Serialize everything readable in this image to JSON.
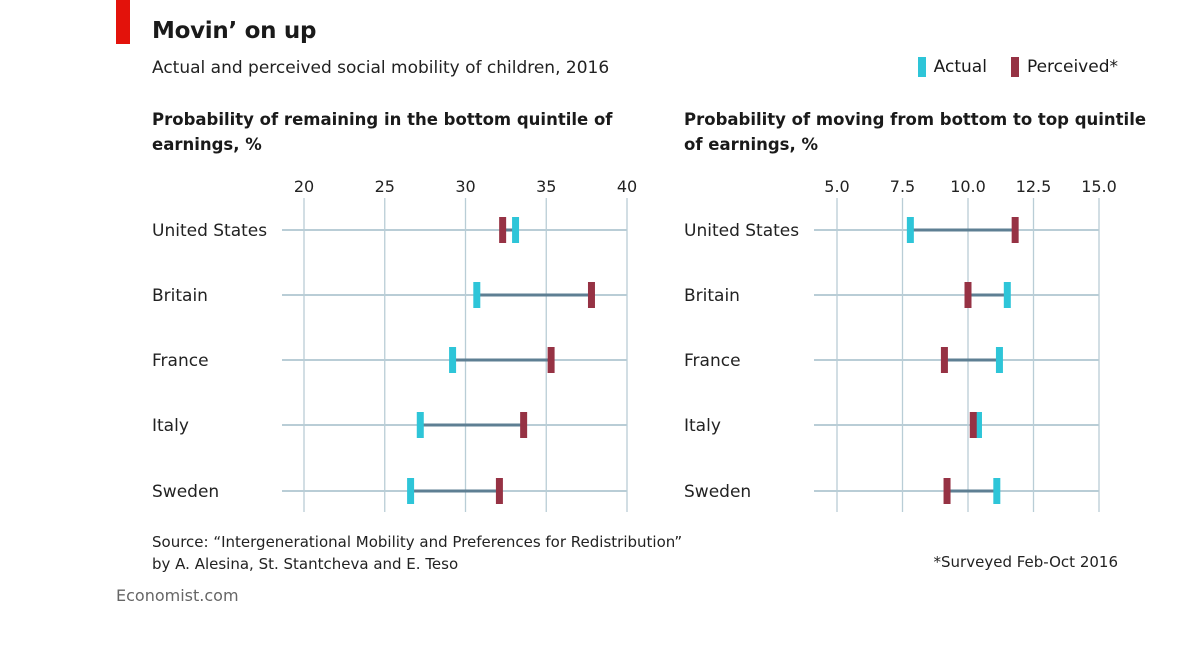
{
  "header": {
    "title": "Movin’ on up",
    "subtitle": "Actual and perceived social mobility of children, 2016"
  },
  "legend": [
    {
      "label": "Actual",
      "color": "#2ec5d8"
    },
    {
      "label": "Perceived*",
      "color": "#963244"
    }
  ],
  "colors": {
    "connector": "#5e7f93",
    "row_line": "#b9cdd6",
    "grid": "#b9cdd6",
    "accent": "#e3120b"
  },
  "chart_data": [
    {
      "type": "dot-range",
      "title": "Probability of remaining in the bottom quintile of earnings, %",
      "xlim": [
        20,
        40
      ],
      "ticks": [
        "20",
        "25",
        "30",
        "35",
        "40"
      ],
      "tick_values": [
        20,
        25,
        30,
        35,
        40
      ],
      "categories": [
        "United States",
        "Britain",
        "France",
        "Italy",
        "Sweden"
      ],
      "series": [
        {
          "name": "Actual",
          "values": [
            33.1,
            30.7,
            29.2,
            27.2,
            26.6
          ]
        },
        {
          "name": "Perceived*",
          "values": [
            32.3,
            37.8,
            35.3,
            33.6,
            32.1
          ]
        }
      ]
    },
    {
      "type": "dot-range",
      "title": "Probability of moving from bottom to top quintile of earnings, %",
      "xlim": [
        5,
        15
      ],
      "ticks": [
        "5.0",
        "7.5",
        "10.0",
        "12.5",
        "15.0"
      ],
      "tick_values": [
        5,
        7.5,
        10,
        12.5,
        15
      ],
      "categories": [
        "United States",
        "Britain",
        "France",
        "Italy",
        "Sweden"
      ],
      "series": [
        {
          "name": "Actual",
          "values": [
            7.8,
            11.5,
            11.2,
            10.4,
            11.1
          ]
        },
        {
          "name": "Perceived*",
          "values": [
            11.8,
            10.0,
            9.1,
            10.2,
            9.2
          ]
        }
      ]
    }
  ],
  "footer": {
    "source_line1": "Source: “Intergenerational Mobility and Preferences for Redistribution”",
    "source_line2": "by A. Alesina, St. Stantcheva and E. Teso",
    "note": "*Surveyed Feb-Oct 2016",
    "brand": "Economist.com"
  }
}
